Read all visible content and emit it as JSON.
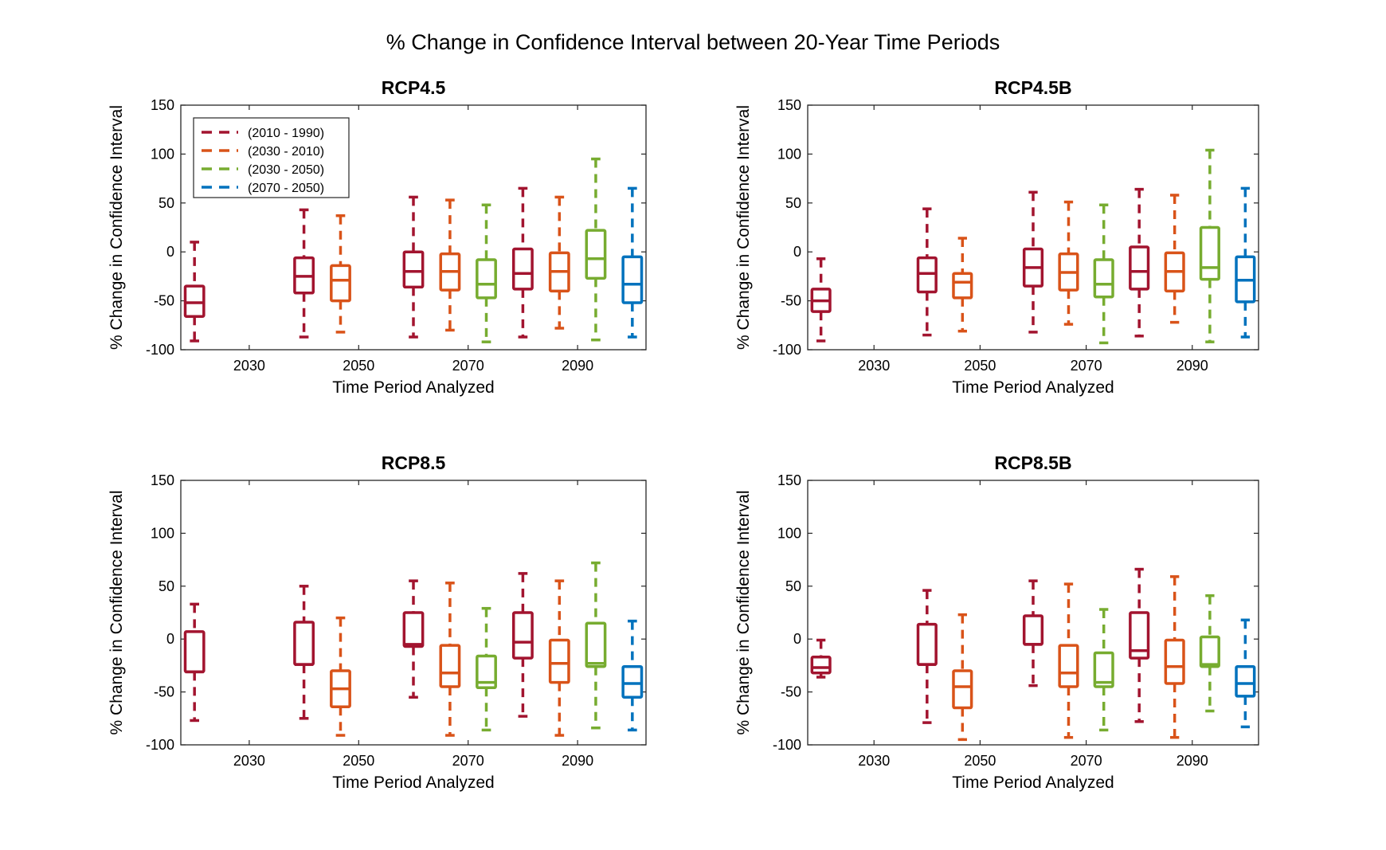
{
  "figure_title": "% Change in Confidence Interval between 20-Year Time Periods",
  "colors": {
    "(2010 - 1990)": "#A2142F",
    "(2030 - 2010)": "#D95319",
    "(2030 - 2050)": "#77AC30",
    "(2070 - 2050)": "#0072BD"
  },
  "chart_data": [
    {
      "type": "box",
      "title": "RCP4.5",
      "xlabel": "Time Period Analyzed",
      "ylabel": "% Change in Confidence Interval",
      "ylim": [
        -100,
        150
      ],
      "yticks": [
        -100,
        -50,
        0,
        50,
        100,
        150
      ],
      "categories": [
        "2030",
        "2050",
        "2070",
        "2090"
      ],
      "legend": {
        "placement": "top-left",
        "entries": [
          "(2010 - 1990)",
          "(2030 - 2010)",
          "(2030 - 2050)",
          "(2070 - 2050)"
        ]
      },
      "boxes": [
        {
          "category": "2030",
          "series": "(2010 - 1990)",
          "min": -91,
          "q1": -66,
          "median": -52,
          "q3": -35,
          "max": 10
        },
        {
          "category": "2050",
          "series": "(2010 - 1990)",
          "min": -87,
          "q1": -42,
          "median": -25,
          "q3": -6,
          "max": 43
        },
        {
          "category": "2050",
          "series": "(2030 - 2010)",
          "min": -82,
          "q1": -50,
          "median": -29,
          "q3": -14,
          "max": 37
        },
        {
          "category": "2070",
          "series": "(2010 - 1990)",
          "min": -87,
          "q1": -36,
          "median": -20,
          "q3": 0,
          "max": 56
        },
        {
          "category": "2070",
          "series": "(2030 - 2010)",
          "min": -80,
          "q1": -39,
          "median": -20,
          "q3": -2,
          "max": 53
        },
        {
          "category": "2070",
          "series": "(2030 - 2050)",
          "min": -92,
          "q1": -47,
          "median": -33,
          "q3": -8,
          "max": 48
        },
        {
          "category": "2090",
          "series": "(2010 - 1990)",
          "min": -87,
          "q1": -38,
          "median": -22,
          "q3": 3,
          "max": 65
        },
        {
          "category": "2090",
          "series": "(2030 - 2010)",
          "min": -78,
          "q1": -40,
          "median": -20,
          "q3": -1,
          "max": 56
        },
        {
          "category": "2090",
          "series": "(2030 - 2050)",
          "min": -90,
          "q1": -27,
          "median": -7,
          "q3": 22,
          "max": 95
        },
        {
          "category": "2090",
          "series": "(2070 - 2050)",
          "min": -87,
          "q1": -52,
          "median": -33,
          "q3": -5,
          "max": 65
        }
      ]
    },
    {
      "type": "box",
      "title": "RCP4.5B",
      "xlabel": "Time Period Analyzed",
      "ylabel": "% Change in Confidence Interval",
      "ylim": [
        -100,
        150
      ],
      "yticks": [
        -100,
        -50,
        0,
        50,
        100,
        150
      ],
      "categories": [
        "2030",
        "2050",
        "2070",
        "2090"
      ],
      "boxes": [
        {
          "category": "2030",
          "series": "(2010 - 1990)",
          "min": -91,
          "q1": -61,
          "median": -50,
          "q3": -38,
          "max": -7
        },
        {
          "category": "2050",
          "series": "(2010 - 1990)",
          "min": -85,
          "q1": -41,
          "median": -22,
          "q3": -6,
          "max": 44
        },
        {
          "category": "2050",
          "series": "(2030 - 2010)",
          "min": -81,
          "q1": -47,
          "median": -31,
          "q3": -22,
          "max": 14
        },
        {
          "category": "2070",
          "series": "(2010 - 1990)",
          "min": -82,
          "q1": -35,
          "median": -16,
          "q3": 3,
          "max": 61
        },
        {
          "category": "2070",
          "series": "(2030 - 2010)",
          "min": -74,
          "q1": -39,
          "median": -21,
          "q3": -2,
          "max": 51
        },
        {
          "category": "2070",
          "series": "(2030 - 2050)",
          "min": -93,
          "q1": -46,
          "median": -33,
          "q3": -8,
          "max": 48
        },
        {
          "category": "2090",
          "series": "(2010 - 1990)",
          "min": -86,
          "q1": -38,
          "median": -20,
          "q3": 5,
          "max": 64
        },
        {
          "category": "2090",
          "series": "(2030 - 2010)",
          "min": -72,
          "q1": -40,
          "median": -20,
          "q3": -1,
          "max": 58
        },
        {
          "category": "2090",
          "series": "(2030 - 2050)",
          "min": -92,
          "q1": -28,
          "median": -16,
          "q3": 25,
          "max": 104
        },
        {
          "category": "2090",
          "series": "(2070 - 2050)",
          "min": -87,
          "q1": -51,
          "median": -29,
          "q3": -5,
          "max": 65
        }
      ]
    },
    {
      "type": "box",
      "title": "RCP8.5",
      "xlabel": "Time Period Analyzed",
      "ylabel": "% Change in Confidence Interval",
      "ylim": [
        -100,
        150
      ],
      "yticks": [
        -100,
        -50,
        0,
        50,
        100,
        150
      ],
      "categories": [
        "2030",
        "2050",
        "2070",
        "2090"
      ],
      "boxes": [
        {
          "category": "2030",
          "series": "(2010 - 1990)",
          "min": -77,
          "q1": -31,
          "median": -31,
          "q3": 7,
          "max": 33
        },
        {
          "category": "2050",
          "series": "(2010 - 1990)",
          "min": -75,
          "q1": -24,
          "median": -24,
          "q3": 16,
          "max": 50
        },
        {
          "category": "2050",
          "series": "(2030 - 2010)",
          "min": -91,
          "q1": -64,
          "median": -47,
          "q3": -30,
          "max": 20
        },
        {
          "category": "2070",
          "series": "(2010 - 1990)",
          "min": -55,
          "q1": -7,
          "median": -5,
          "q3": 25,
          "max": 55
        },
        {
          "category": "2070",
          "series": "(2030 - 2010)",
          "min": -91,
          "q1": -45,
          "median": -32,
          "q3": -6,
          "max": 53
        },
        {
          "category": "2070",
          "series": "(2030 - 2050)",
          "min": -86,
          "q1": -46,
          "median": -41,
          "q3": -16,
          "max": 29
        },
        {
          "category": "2090",
          "series": "(2010 - 1990)",
          "min": -73,
          "q1": -18,
          "median": -3,
          "q3": 25,
          "max": 62
        },
        {
          "category": "2090",
          "series": "(2030 - 2010)",
          "min": -91,
          "q1": -41,
          "median": -23,
          "q3": -1,
          "max": 55
        },
        {
          "category": "2090",
          "series": "(2030 - 2050)",
          "min": -84,
          "q1": -26,
          "median": -23,
          "q3": 15,
          "max": 72
        },
        {
          "category": "2090",
          "series": "(2070 - 2050)",
          "min": -86,
          "q1": -55,
          "median": -42,
          "q3": -26,
          "max": 17
        }
      ]
    },
    {
      "type": "box",
      "title": "RCP8.5B",
      "xlabel": "Time Period Analyzed",
      "ylabel": "% Change in Confidence Interval",
      "ylim": [
        -100,
        150
      ],
      "yticks": [
        -100,
        -50,
        0,
        50,
        100,
        150
      ],
      "categories": [
        "2030",
        "2050",
        "2070",
        "2090"
      ],
      "boxes": [
        {
          "category": "2030",
          "series": "(2010 - 1990)",
          "min": -36,
          "q1": -32,
          "median": -27,
          "q3": -17,
          "max": -1
        },
        {
          "category": "2050",
          "series": "(2010 - 1990)",
          "min": -79,
          "q1": -24,
          "median": -24,
          "q3": 14,
          "max": 46
        },
        {
          "category": "2050",
          "series": "(2030 - 2010)",
          "min": -95,
          "q1": -65,
          "median": -45,
          "q3": -30,
          "max": 23
        },
        {
          "category": "2070",
          "series": "(2010 - 1990)",
          "min": -44,
          "q1": -5,
          "median": -5,
          "q3": 22,
          "max": 55
        },
        {
          "category": "2070",
          "series": "(2030 - 2010)",
          "min": -93,
          "q1": -45,
          "median": -32,
          "q3": -6,
          "max": 52
        },
        {
          "category": "2070",
          "series": "(2030 - 2050)",
          "min": -86,
          "q1": -45,
          "median": -41,
          "q3": -13,
          "max": 28
        },
        {
          "category": "2090",
          "series": "(2010 - 1990)",
          "min": -78,
          "q1": -18,
          "median": -11,
          "q3": 25,
          "max": 66
        },
        {
          "category": "2090",
          "series": "(2030 - 2010)",
          "min": -93,
          "q1": -42,
          "median": -26,
          "q3": -1,
          "max": 59
        },
        {
          "category": "2090",
          "series": "(2030 - 2050)",
          "min": -68,
          "q1": -26,
          "median": -24,
          "q3": 2,
          "max": 41
        },
        {
          "category": "2090",
          "series": "(2070 - 2050)",
          "min": -83,
          "q1": -54,
          "median": -42,
          "q3": -26,
          "max": 18
        }
      ]
    }
  ]
}
